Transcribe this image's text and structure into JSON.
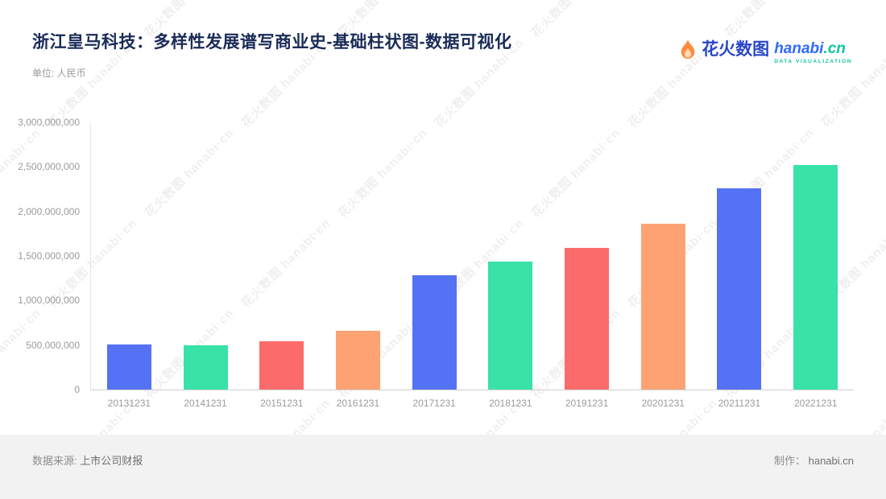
{
  "header": {
    "title": "浙江皇马科技：多样性发展谱写商业史-基础柱状图-数据可视化",
    "unit_label": "单位: 人民币",
    "logo": {
      "brand_cn": "花火数图",
      "brand_en_part1": "hanabi",
      "brand_en_part2": ".cn",
      "tagline": "DATA VISUALIZATION"
    }
  },
  "chart_data": {
    "type": "bar",
    "title": "浙江皇马科技：多样性发展谱写商业史-基础柱状图-数据可视化",
    "xlabel": "",
    "ylabel": "单位: 人民币",
    "categories": [
      "20131231",
      "20141231",
      "20151231",
      "20161231",
      "20171231",
      "20181231",
      "20191231",
      "20201231",
      "20211231",
      "20221231"
    ],
    "values": [
      510000000,
      495000000,
      545000000,
      660000000,
      1285000000,
      1440000000,
      1595000000,
      1860000000,
      2260000000,
      2520000000
    ],
    "bar_colors": [
      "#5571F4",
      "#39E2A6",
      "#FC6B6B",
      "#FFA273"
    ],
    "ylim": [
      0,
      3000000000
    ],
    "grid": false,
    "legend": false,
    "y_ticks": [
      {
        "value": 0,
        "label": "0"
      },
      {
        "value": 500000000,
        "label": "500,000,000"
      },
      {
        "value": 1000000000,
        "label": "1,000,000,000"
      },
      {
        "value": 1500000000,
        "label": "1,500,000,000"
      },
      {
        "value": 2000000000,
        "label": "2,000,000,000"
      },
      {
        "value": 2500000000,
        "label": "2,500,000,000"
      },
      {
        "value": 3000000000,
        "label": "3,000,000,000"
      }
    ]
  },
  "footer": {
    "source_label": "数据来源:",
    "source_value": "上市公司财报",
    "credit_label": "制作：",
    "credit_value": "hanabi.cn"
  },
  "watermark": {
    "text": "花火数图 hanabi·cn"
  }
}
